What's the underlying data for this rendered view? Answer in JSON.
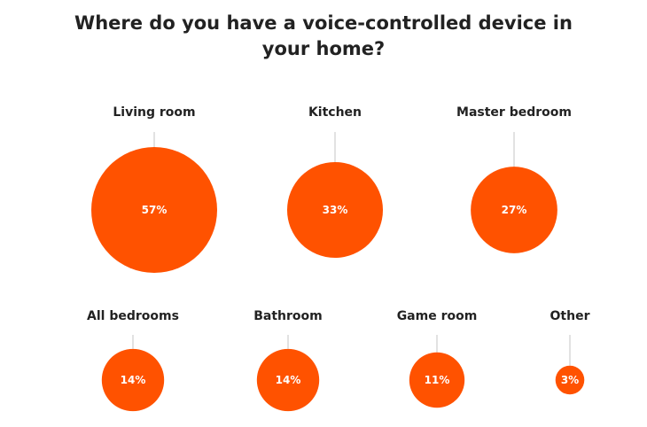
{
  "chart_data": {
    "type": "bubble",
    "title_lines": [
      "Where do you have a voice-controlled device in",
      "your home?"
    ],
    "accent_color": "#ff5200",
    "connector_color": "#d9d9d9",
    "categories": [
      "Living room",
      "Kitchen",
      "Master bedroom",
      "All bedrooms",
      "Bathroom",
      "Game room",
      "Other"
    ],
    "values": [
      57,
      33,
      27,
      14,
      14,
      11,
      3
    ],
    "value_labels": [
      "57%",
      "33%",
      "27%",
      "14%",
      "14%",
      "11%",
      "3%"
    ]
  }
}
